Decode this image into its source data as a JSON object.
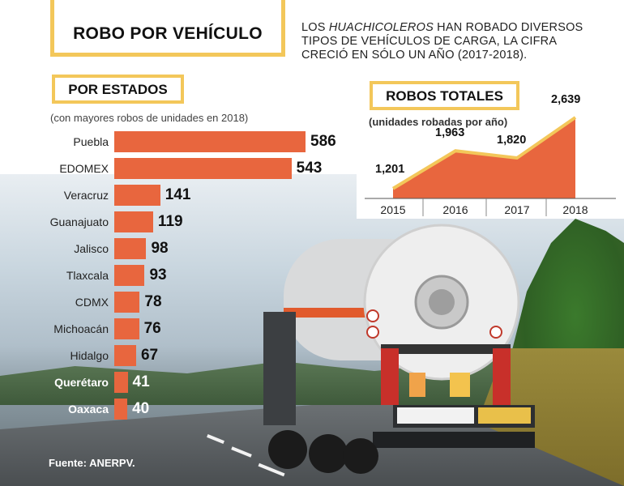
{
  "title": "ROBO POR VEHÍCULO",
  "intro": {
    "before": "LOS ",
    "emphasis": "HUACHICOLEROS",
    "after": " HAN ROBADO DIVERSOS TIPOS DE VEHÍCULOS DE CARGA, LA CIFRA CRECIÓ EN SÓLO UN AÑO (2017-2018)."
  },
  "source": "Fuente: ANERPV.",
  "colors": {
    "bar": "#e8663e",
    "accent": "#f3c75a",
    "area_line": "#f3c75a"
  },
  "chart_data": [
    {
      "type": "bar",
      "orientation": "horizontal",
      "title": "POR ESTADOS",
      "subtitle": "(con mayores robos de unidades en 2018)",
      "categories": [
        "Puebla",
        "EDOMEX",
        "Veracruz",
        "Guanajuato",
        "Jalisco",
        "Tlaxcala",
        "CDMX",
        "Michoacán",
        "Hidalgo",
        "Querétaro",
        "Oaxaca"
      ],
      "values": [
        586,
        543,
        141,
        119,
        98,
        93,
        78,
        76,
        67,
        41,
        40
      ],
      "value_labels": [
        "586",
        "543",
        "141",
        "119",
        "98",
        "93",
        "78",
        "76",
        "67",
        "41",
        "40"
      ]
    },
    {
      "type": "area",
      "title": "ROBOS TOTALES",
      "subtitle": "(unidades robadas por año)",
      "x": [
        "2015",
        "2016",
        "2017",
        "2018"
      ],
      "y": [
        1201,
        1963,
        1820,
        2639
      ],
      "value_labels": [
        "1,201",
        "1,963",
        "1,820",
        "2,639"
      ]
    }
  ]
}
